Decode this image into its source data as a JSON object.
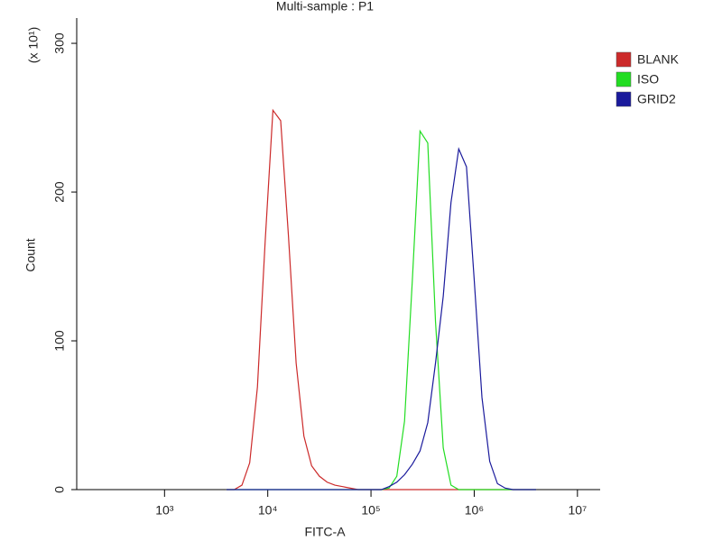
{
  "chart_data": {
    "type": "line",
    "title": "Multi-sample : P1",
    "x_label": "FITC-A",
    "y_label": "Count",
    "y_multiplier": "(x 10¹)",
    "x_scale": "log",
    "legend_position": "right",
    "xlim": [
      141,
      16600000
    ],
    "ylim": [
      0,
      317
    ],
    "xticks": [
      {
        "value": 1000,
        "label": "10³"
      },
      {
        "value": 10000,
        "label": "10⁴"
      },
      {
        "value": 100000,
        "label": "10⁵"
      },
      {
        "value": 1000000,
        "label": "10⁶"
      },
      {
        "value": 10000000,
        "label": "10⁷"
      }
    ],
    "yticks": [
      0,
      100,
      200,
      300
    ],
    "x": [
      3981,
      4732,
      5623,
      6683,
      7943,
      9441,
      11220,
      13335,
      15849,
      18836,
      22387,
      26607,
      31623,
      37584,
      44668,
      53088,
      63096,
      74989,
      89125,
      105925,
      125893,
      149624,
      177828,
      211349,
      251189,
      298538,
      354813,
      421697,
      501187,
      595662,
      707946,
      841395,
      1000000,
      1188502,
      1412538,
      1678804,
      1995262,
      2371374,
      2818383,
      3349654,
      3981072
    ],
    "series": [
      {
        "name": "BLANK",
        "color": "#cc2a2a",
        "values": [
          0,
          0,
          3,
          18,
          69,
          167,
          255,
          248,
          171,
          85,
          36,
          16,
          9,
          5,
          3,
          2,
          1,
          0,
          0,
          0,
          0,
          0,
          0,
          0,
          0,
          0,
          0,
          0,
          0,
          0,
          0,
          0,
          0,
          0,
          0,
          0,
          0,
          0,
          0,
          0,
          0
        ]
      },
      {
        "name": "ISO",
        "color": "#22dd22",
        "values": [
          0,
          0,
          0,
          0,
          0,
          0,
          0,
          0,
          0,
          0,
          0,
          0,
          0,
          0,
          0,
          0,
          0,
          0,
          0,
          0,
          0,
          1,
          9,
          46,
          140,
          241,
          233,
          113,
          28,
          3,
          0,
          0,
          0,
          0,
          0,
          0,
          0,
          0,
          0,
          0,
          0
        ]
      },
      {
        "name": "GRID2",
        "color": "#1a1a9c",
        "values": [
          0,
          0,
          0,
          0,
          0,
          0,
          0,
          0,
          0,
          0,
          0,
          0,
          0,
          0,
          0,
          0,
          0,
          0,
          0,
          0,
          0,
          2,
          5,
          10,
          17,
          26,
          45,
          85,
          130,
          193,
          229,
          217,
          141,
          62,
          19,
          4,
          1,
          0,
          0,
          0,
          0
        ]
      }
    ]
  }
}
